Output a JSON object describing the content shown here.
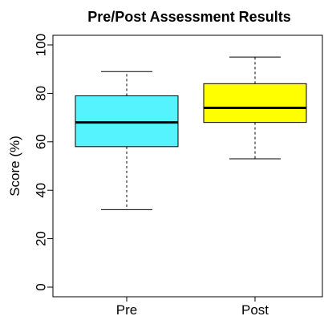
{
  "chart_data": {
    "type": "boxplot",
    "title": "Pre/Post Assessment Results",
    "xlabel": "",
    "ylabel": "Score (%)",
    "ylim": [
      0,
      100
    ],
    "yticks": [
      0,
      20,
      40,
      60,
      80,
      100
    ],
    "categories": [
      "Pre",
      "Post"
    ],
    "boxes": [
      {
        "label": "Pre",
        "min": 32,
        "q1": 58,
        "median": 68,
        "q3": 79,
        "max": 89,
        "color": "#55f3fe"
      },
      {
        "label": "Post",
        "min": 53,
        "q1": 68,
        "median": 74,
        "q3": 84,
        "max": 95,
        "color": "#ffff00"
      }
    ],
    "grid": false,
    "legend": "none"
  }
}
